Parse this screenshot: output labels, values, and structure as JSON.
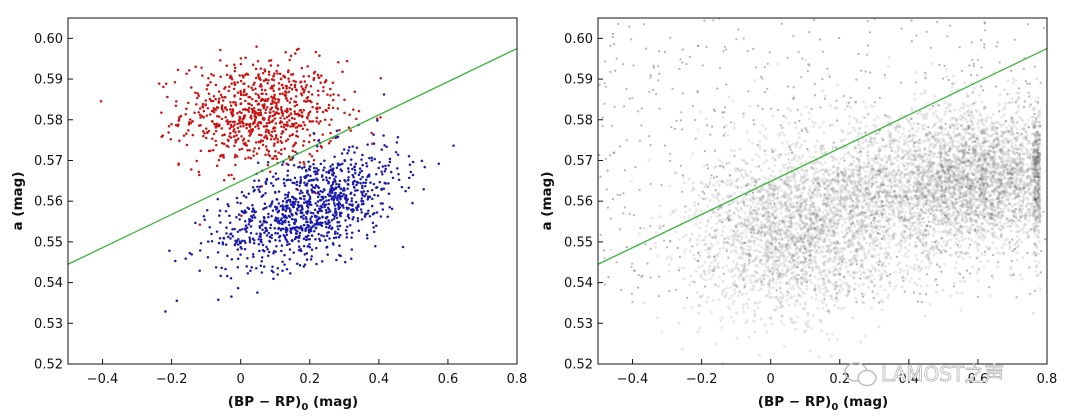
{
  "chart_data": [
    {
      "type": "scatter",
      "title": "",
      "xlabel_main": "(BP − RP)",
      "xlabel_sub": "0",
      "xlabel_unit": " (mag)",
      "ylabel": "a (mag)",
      "xlim": [
        -0.5,
        0.8
      ],
      "ylim": [
        0.52,
        0.605
      ],
      "xticks": [
        -0.4,
        -0.2,
        0.0,
        0.2,
        0.4,
        0.6,
        0.8
      ],
      "xtick_labels": [
        "−0.4",
        "−0.2",
        "0",
        "0.2",
        "0.4",
        "0.6",
        "0.8"
      ],
      "yticks": [
        0.52,
        0.53,
        0.54,
        0.55,
        0.56,
        0.57,
        0.58,
        0.59,
        0.6
      ],
      "ytick_labels": [
        "0.52",
        "0.53",
        "0.54",
        "0.55",
        "0.56",
        "0.57",
        "0.58",
        "0.59",
        "0.60"
      ],
      "grid": false,
      "divider_line": {
        "color": "#3cb43c",
        "x": [
          -0.5,
          0.8
        ],
        "y": [
          0.5445,
          0.5975
        ]
      },
      "series": [
        {
          "color": "#cc1111",
          "description_points": [
            [
              0.05,
              0.581
            ],
            [
              -0.1,
              0.578
            ],
            [
              0.15,
              0.584
            ],
            [
              0.0,
              0.59
            ],
            [
              0.1,
              0.575
            ],
            [
              0.25,
              0.58
            ],
            [
              -0.05,
              0.585
            ],
            [
              0.2,
              0.588
            ]
          ]
        },
        {
          "color": "#1a1aaa",
          "description_points": [
            [
              0.15,
              0.556
            ],
            [
              0.25,
              0.562
            ],
            [
              0.35,
              0.565
            ],
            [
              0.05,
              0.552
            ],
            [
              0.1,
              0.548
            ],
            [
              0.3,
              0.57
            ],
            [
              0.2,
              0.558
            ],
            [
              0.4,
              0.566
            ]
          ]
        }
      ]
    },
    {
      "type": "scatter",
      "title": "",
      "xlabel_main": "(BP − RP)",
      "xlabel_sub": "0",
      "xlabel_unit": " (mag)",
      "ylabel": "a (mag)",
      "xlim": [
        -0.5,
        0.8
      ],
      "ylim": [
        0.52,
        0.605
      ],
      "xticks": [
        -0.4,
        -0.2,
        0.0,
        0.2,
        0.4,
        0.6,
        0.8
      ],
      "xtick_labels": [
        "−0.4",
        "−0.2",
        "0",
        "0.2",
        "0.4",
        "0.6",
        "0.8"
      ],
      "yticks": [
        0.52,
        0.53,
        0.54,
        0.55,
        0.56,
        0.57,
        0.58,
        0.59,
        0.6
      ],
      "ytick_labels": [
        "0.52",
        "0.53",
        "0.54",
        "0.55",
        "0.56",
        "0.57",
        "0.58",
        "0.59",
        "0.60"
      ],
      "grid": false,
      "divider_line": {
        "color": "#3cb43c",
        "x": [
          -0.5,
          0.8
        ],
        "y": [
          0.5445,
          0.5975
        ]
      },
      "series": [
        {
          "color": "#555555",
          "density_peaks": [
            [
              0.65,
              0.566
            ],
            [
              0.05,
              0.551
            ],
            [
              0.3,
              0.562
            ]
          ]
        }
      ]
    }
  ],
  "watermark": {
    "text": "LAMOST之声",
    "icon": "wechat-bubble-icon"
  }
}
